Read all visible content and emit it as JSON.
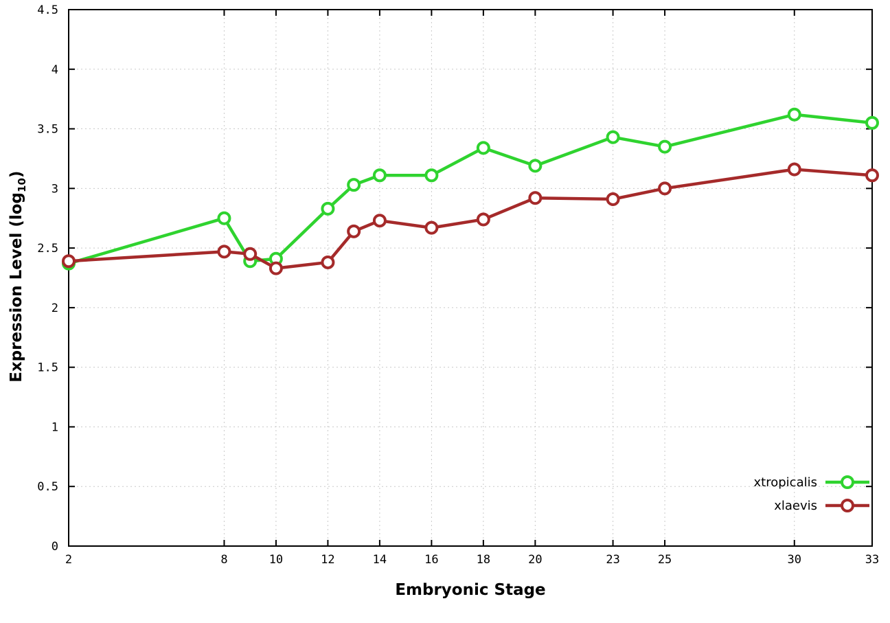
{
  "chart_data": {
    "type": "line",
    "title": "",
    "xlabel": "Embryonic Stage",
    "ylabel_prefix": "Expression Level (log",
    "ylabel_sub": "10",
    "ylabel_suffix": ")",
    "x": [
      2,
      8,
      9,
      10,
      12,
      13,
      14,
      16,
      18,
      20,
      23,
      25,
      30,
      33
    ],
    "xlim": [
      2,
      33
    ],
    "ylim": [
      0,
      4.5
    ],
    "xticks": [
      2,
      8,
      10,
      12,
      14,
      16,
      18,
      20,
      23,
      25,
      30,
      33
    ],
    "xtick_labels": [
      "2",
      "8",
      "10",
      "12",
      "14",
      "16",
      "18",
      "20",
      "23",
      "25",
      "30",
      "33"
    ],
    "yticks": [
      0,
      0.5,
      1,
      1.5,
      2,
      2.5,
      3,
      3.5,
      4,
      4.5
    ],
    "ytick_labels": [
      "0",
      "0.5",
      "1",
      "1.5",
      "2",
      "2.5",
      "3",
      "3.5",
      "4",
      "4.5"
    ],
    "grid": true,
    "legend_position": "bottom-right",
    "marker": "open-circle",
    "series": [
      {
        "name": "xtropicalis",
        "color": "#2fd32f",
        "values": [
          2.37,
          2.75,
          2.39,
          2.41,
          2.83,
          3.03,
          3.11,
          3.11,
          3.34,
          3.19,
          3.43,
          3.35,
          3.62,
          3.55
        ]
      },
      {
        "name": "xlaevis",
        "color": "#a52a2a",
        "values": [
          2.39,
          2.47,
          2.45,
          2.33,
          2.38,
          2.64,
          2.73,
          2.67,
          2.74,
          2.92,
          2.91,
          3.0,
          3.16,
          3.11
        ]
      }
    ]
  }
}
